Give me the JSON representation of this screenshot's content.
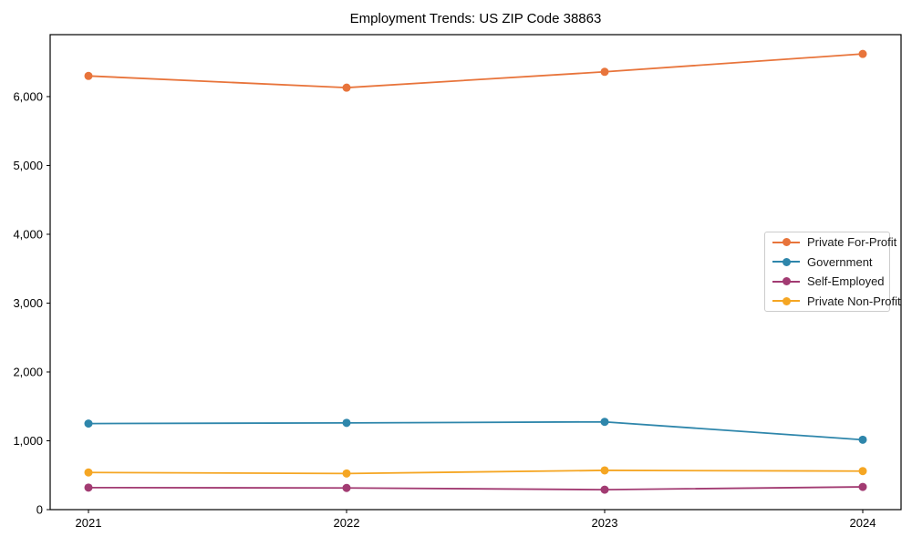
{
  "chart_data": {
    "type": "line",
    "title": "Employment Trends: US ZIP Code 38863",
    "x": [
      "2021",
      "2022",
      "2023",
      "2024"
    ],
    "series": [
      {
        "name": "Private For-Profit",
        "color": "#E8743B",
        "values": [
          6300,
          6130,
          6360,
          6620
        ]
      },
      {
        "name": "Government",
        "color": "#2E86AB",
        "values": [
          1250,
          1260,
          1275,
          1015
        ]
      },
      {
        "name": "Self-Employed",
        "color": "#A23B72",
        "values": [
          320,
          315,
          290,
          330
        ]
      },
      {
        "name": "Private Non-Profit",
        "color": "#F5A623",
        "values": [
          540,
          525,
          570,
          560
        ]
      }
    ],
    "xlabel": "",
    "ylabel": "",
    "ylim": [
      0,
      6900
    ],
    "yticks": [
      0,
      1000,
      2000,
      3000,
      4000,
      5000,
      6000
    ],
    "grid": false,
    "legend_position": "center-right",
    "axis_color": "#000000",
    "tick_label_color": "#000000"
  }
}
